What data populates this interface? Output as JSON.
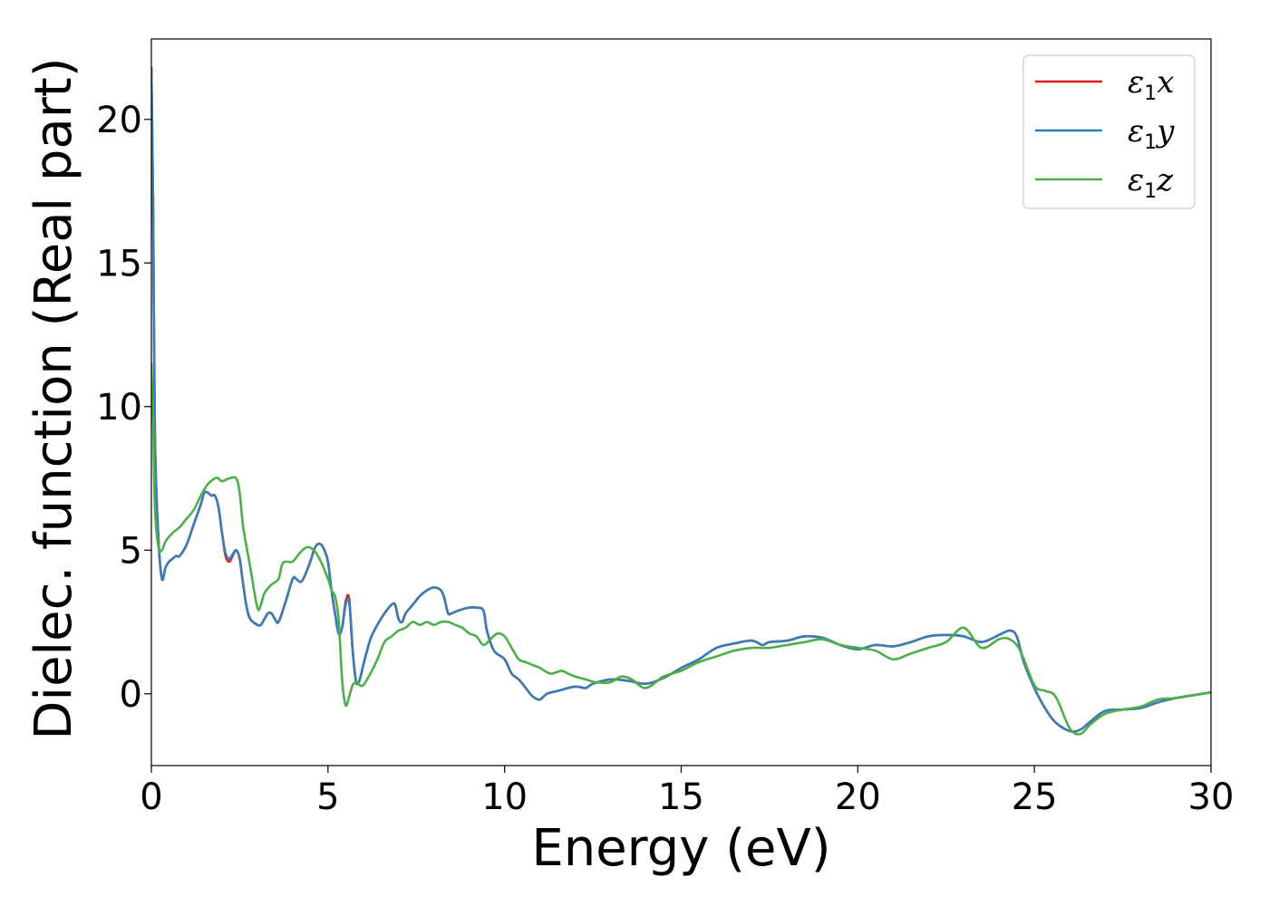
{
  "chart_data": {
    "type": "line",
    "title": "",
    "xlabel": "Energy (eV)",
    "ylabel": "Dielec. function (Real part)",
    "xlim": [
      0,
      30
    ],
    "ylim": [
      -2.5,
      22.8
    ],
    "xticks": [
      0,
      5,
      10,
      15,
      20,
      25,
      30
    ],
    "yticks": [
      0,
      5,
      10,
      15,
      20
    ],
    "grid": false,
    "legend_position": "top-right",
    "series": [
      {
        "name": "ε1x",
        "legend_main": "ε",
        "legend_sub": "1",
        "legend_suffix": "x",
        "color": "#e41a1c",
        "x": [
          0,
          0.05,
          0.1,
          0.2,
          0.3,
          0.4,
          0.5,
          0.6,
          0.7,
          0.8,
          1.0,
          1.2,
          1.4,
          1.5,
          1.6,
          1.7,
          1.8,
          1.9,
          2.0,
          2.1,
          2.2,
          2.3,
          2.4,
          2.5,
          2.6,
          2.7,
          2.8,
          3.0,
          3.1,
          3.2,
          3.3,
          3.4,
          3.5,
          3.6,
          3.8,
          4.0,
          4.1,
          4.2,
          4.3,
          4.5,
          4.6,
          4.7,
          4.8,
          4.9,
          5.0,
          5.1,
          5.2,
          5.3,
          5.4,
          5.5,
          5.6,
          5.7,
          5.8,
          5.9,
          6.0,
          6.2,
          6.4,
          6.6,
          6.8,
          6.9,
          7.0,
          7.1,
          7.2,
          7.4,
          7.6,
          7.8,
          8.0,
          8.2,
          8.3,
          8.4,
          8.5,
          8.7,
          9.0,
          9.2,
          9.4,
          9.5,
          9.7,
          10.0,
          10.2,
          10.4,
          10.6,
          10.8,
          11.0,
          11.2,
          11.5,
          12.0,
          12.3,
          12.5,
          13.0,
          13.5,
          14.0,
          14.5,
          15.0,
          15.5,
          16.0,
          16.5,
          17.0,
          17.3,
          17.5,
          18.0,
          18.5,
          19.0,
          19.5,
          20.0,
          20.5,
          21.0,
          21.5,
          22.0,
          22.5,
          23.0,
          23.5,
          24.0,
          24.3,
          24.5,
          24.7,
          25.0,
          25.3,
          25.6,
          26.0,
          26.3,
          26.6,
          27.0,
          27.5,
          28.0,
          28.5,
          29.0,
          29.5,
          30.0
        ],
        "y": [
          21.8,
          17.0,
          9.0,
          5.4,
          4.0,
          4.4,
          4.6,
          4.7,
          4.8,
          4.8,
          5.2,
          5.9,
          6.6,
          7.0,
          7.0,
          6.9,
          6.9,
          6.5,
          5.6,
          4.8,
          4.6,
          4.8,
          5.0,
          4.7,
          3.8,
          3.0,
          2.6,
          2.4,
          2.4,
          2.6,
          2.8,
          2.8,
          2.6,
          2.5,
          3.2,
          4.0,
          4.0,
          3.9,
          4.0,
          4.6,
          5.0,
          5.2,
          5.2,
          5.0,
          4.6,
          3.6,
          2.8,
          2.1,
          2.3,
          3.2,
          3.3,
          1.5,
          0.4,
          0.5,
          1.0,
          1.9,
          2.4,
          2.8,
          3.1,
          3.1,
          2.6,
          2.5,
          2.8,
          3.1,
          3.4,
          3.6,
          3.7,
          3.6,
          3.3,
          2.8,
          2.8,
          2.9,
          3.0,
          3.0,
          2.9,
          2.2,
          1.5,
          1.2,
          0.7,
          0.5,
          0.2,
          -0.1,
          -0.2,
          0.0,
          0.1,
          0.25,
          0.2,
          0.35,
          0.5,
          0.45,
          0.35,
          0.55,
          0.9,
          1.2,
          1.6,
          1.75,
          1.85,
          1.7,
          1.8,
          1.85,
          2.0,
          1.95,
          1.7,
          1.55,
          1.7,
          1.65,
          1.8,
          2.0,
          2.05,
          2.0,
          1.8,
          2.05,
          2.2,
          2.0,
          1.1,
          0.2,
          -0.5,
          -1.0,
          -1.3,
          -1.25,
          -0.95,
          -0.6,
          -0.55,
          -0.5,
          -0.3,
          -0.15,
          -0.05,
          0.05
        ]
      },
      {
        "name": "ε1y",
        "legend_main": "ε",
        "legend_sub": "1",
        "legend_suffix": "y",
        "color": "#377eb8",
        "x": [
          0,
          0.05,
          0.1,
          0.2,
          0.3,
          0.4,
          0.5,
          0.6,
          0.7,
          0.8,
          1.0,
          1.2,
          1.4,
          1.5,
          1.6,
          1.7,
          1.8,
          1.9,
          2.0,
          2.1,
          2.2,
          2.3,
          2.4,
          2.5,
          2.6,
          2.7,
          2.8,
          3.0,
          3.1,
          3.2,
          3.3,
          3.4,
          3.5,
          3.6,
          3.8,
          4.0,
          4.1,
          4.2,
          4.3,
          4.5,
          4.6,
          4.7,
          4.8,
          4.9,
          5.0,
          5.1,
          5.2,
          5.3,
          5.4,
          5.5,
          5.6,
          5.7,
          5.8,
          5.9,
          6.0,
          6.2,
          6.4,
          6.6,
          6.8,
          6.9,
          7.0,
          7.1,
          7.2,
          7.4,
          7.6,
          7.8,
          8.0,
          8.2,
          8.3,
          8.4,
          8.5,
          8.7,
          9.0,
          9.2,
          9.4,
          9.5,
          9.7,
          10.0,
          10.2,
          10.4,
          10.6,
          10.8,
          11.0,
          11.2,
          11.5,
          12.0,
          12.3,
          12.5,
          13.0,
          13.5,
          14.0,
          14.5,
          15.0,
          15.5,
          16.0,
          16.5,
          17.0,
          17.3,
          17.5,
          18.0,
          18.5,
          19.0,
          19.5,
          20.0,
          20.5,
          21.0,
          21.5,
          22.0,
          22.5,
          23.0,
          23.5,
          24.0,
          24.3,
          24.5,
          24.7,
          25.0,
          25.3,
          25.6,
          26.0,
          26.3,
          26.6,
          27.0,
          27.5,
          28.0,
          28.5,
          29.0,
          29.5,
          30.0
        ],
        "y": [
          21.8,
          17.0,
          9.0,
          5.4,
          4.0,
          4.4,
          4.6,
          4.7,
          4.8,
          4.8,
          5.2,
          5.9,
          6.6,
          7.0,
          7.0,
          6.9,
          6.9,
          6.5,
          5.6,
          4.9,
          4.7,
          4.85,
          5.0,
          4.7,
          3.8,
          3.0,
          2.6,
          2.4,
          2.4,
          2.6,
          2.8,
          2.8,
          2.6,
          2.5,
          3.2,
          4.0,
          4.0,
          3.9,
          4.0,
          4.6,
          5.0,
          5.2,
          5.2,
          5.0,
          4.6,
          3.6,
          2.8,
          2.1,
          2.3,
          3.1,
          3.2,
          1.5,
          0.4,
          0.5,
          1.0,
          1.9,
          2.4,
          2.8,
          3.1,
          3.1,
          2.6,
          2.5,
          2.8,
          3.1,
          3.4,
          3.6,
          3.7,
          3.6,
          3.3,
          2.8,
          2.8,
          2.9,
          3.0,
          3.0,
          2.9,
          2.2,
          1.5,
          1.2,
          0.7,
          0.5,
          0.2,
          -0.1,
          -0.2,
          0.0,
          0.1,
          0.25,
          0.2,
          0.35,
          0.5,
          0.45,
          0.35,
          0.55,
          0.9,
          1.2,
          1.6,
          1.75,
          1.85,
          1.7,
          1.8,
          1.85,
          2.0,
          1.95,
          1.7,
          1.55,
          1.7,
          1.65,
          1.8,
          2.0,
          2.05,
          2.0,
          1.8,
          2.05,
          2.2,
          2.0,
          1.1,
          0.2,
          -0.5,
          -1.0,
          -1.3,
          -1.25,
          -0.95,
          -0.6,
          -0.55,
          -0.5,
          -0.3,
          -0.15,
          -0.05,
          0.05
        ]
      },
      {
        "name": "ε1z",
        "legend_main": "ε",
        "legend_sub": "1",
        "legend_suffix": "z",
        "color": "#4daf4a",
        "x": [
          0,
          0.05,
          0.1,
          0.2,
          0.3,
          0.4,
          0.6,
          0.8,
          1.0,
          1.2,
          1.4,
          1.6,
          1.8,
          1.9,
          2.0,
          2.2,
          2.4,
          2.5,
          2.6,
          2.8,
          3.0,
          3.1,
          3.2,
          3.4,
          3.6,
          3.7,
          3.8,
          4.0,
          4.2,
          4.4,
          4.6,
          4.8,
          5.0,
          5.1,
          5.2,
          5.3,
          5.4,
          5.5,
          5.6,
          5.7,
          5.8,
          5.9,
          6.0,
          6.2,
          6.4,
          6.6,
          6.8,
          7.0,
          7.2,
          7.4,
          7.6,
          7.8,
          8.0,
          8.2,
          8.4,
          8.6,
          8.8,
          9.0,
          9.2,
          9.4,
          9.6,
          9.8,
          10.0,
          10.2,
          10.4,
          10.6,
          10.8,
          11.0,
          11.3,
          11.6,
          11.8,
          12.0,
          12.3,
          12.6,
          13.0,
          13.3,
          13.6,
          14.0,
          14.5,
          15.0,
          15.5,
          16.0,
          16.5,
          17.0,
          17.5,
          18.0,
          18.5,
          19.0,
          19.5,
          20.0,
          20.5,
          21.0,
          21.5,
          22.0,
          22.5,
          23.0,
          23.5,
          24.0,
          24.3,
          24.6,
          25.0,
          25.3,
          25.6,
          26.0,
          26.3,
          26.6,
          27.0,
          27.5,
          28.0,
          28.5,
          29.0,
          29.5,
          30.0
        ],
        "y": [
          11.5,
          9.5,
          6.5,
          5.1,
          5.0,
          5.3,
          5.6,
          5.8,
          6.1,
          6.4,
          6.9,
          7.3,
          7.5,
          7.5,
          7.4,
          7.5,
          7.5,
          7.0,
          5.8,
          4.4,
          3.0,
          3.1,
          3.5,
          3.8,
          4.0,
          4.5,
          4.6,
          4.6,
          4.9,
          5.1,
          5.0,
          4.6,
          4.0,
          3.6,
          3.4,
          2.6,
          0.5,
          -0.4,
          -0.1,
          0.3,
          0.4,
          0.3,
          0.3,
          0.7,
          1.2,
          1.8,
          2.0,
          2.2,
          2.3,
          2.5,
          2.4,
          2.5,
          2.4,
          2.5,
          2.5,
          2.4,
          2.3,
          2.1,
          2.0,
          1.7,
          1.9,
          2.1,
          2.0,
          1.6,
          1.2,
          1.1,
          1.0,
          0.9,
          0.7,
          0.8,
          0.7,
          0.6,
          0.5,
          0.4,
          0.4,
          0.6,
          0.5,
          0.2,
          0.6,
          0.8,
          1.1,
          1.3,
          1.5,
          1.6,
          1.6,
          1.7,
          1.8,
          1.9,
          1.7,
          1.6,
          1.5,
          1.2,
          1.4,
          1.6,
          1.8,
          2.3,
          1.6,
          1.9,
          1.9,
          1.5,
          0.3,
          0.1,
          -0.1,
          -1.2,
          -1.4,
          -1.05,
          -0.7,
          -0.55,
          -0.45,
          -0.2,
          -0.15,
          -0.05,
          0.05
        ]
      }
    ]
  }
}
